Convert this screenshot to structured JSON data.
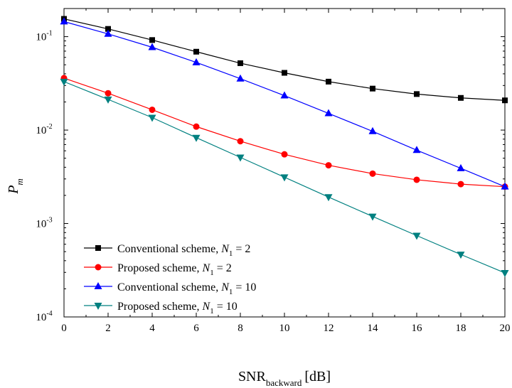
{
  "chart_data": {
    "type": "line",
    "xlabel_main": "SNR",
    "xlabel_sub": "backward",
    "xlabel_unit": "[dB]",
    "ylabel_main": "P",
    "ylabel_sub": "m",
    "xlim": [
      0,
      20
    ],
    "ylim": [
      0.0001,
      0.2
    ],
    "yscale": "log",
    "grid": false,
    "legend_position": "bottom-left",
    "x_ticks": [
      0,
      2,
      4,
      6,
      8,
      10,
      12,
      14,
      16,
      18,
      20
    ],
    "y_ticks": [
      {
        "value": 0.1,
        "base": "10",
        "exp": "-1"
      },
      {
        "value": 0.01,
        "base": "10",
        "exp": "-2"
      },
      {
        "value": 0.001,
        "base": "10",
        "exp": "-3"
      },
      {
        "value": 0.0001,
        "base": "10",
        "exp": "-4"
      }
    ],
    "x": [
      0,
      2,
      4,
      6,
      8,
      10,
      12,
      14,
      16,
      18,
      20
    ],
    "series": [
      {
        "name": "Conventional scheme, N1 = 2",
        "label_text": "Conventional scheme, ",
        "label_var": "N",
        "label_sub": "1",
        "label_val": " = 2",
        "color": "#000000",
        "marker": "square",
        "values": [
          0.155,
          0.121,
          0.092,
          0.069,
          0.052,
          0.041,
          0.033,
          0.0278,
          0.0243,
          0.0221,
          0.0208
        ]
      },
      {
        "name": "Proposed scheme, N1 = 2",
        "label_text": "Proposed scheme, ",
        "label_var": "N",
        "label_sub": "1",
        "label_val": " = 2",
        "color": "#ff0000",
        "marker": "circle",
        "values": [
          0.036,
          0.0248,
          0.0165,
          0.0109,
          0.0076,
          0.0055,
          0.0042,
          0.00342,
          0.00294,
          0.00264,
          0.00248
        ]
      },
      {
        "name": "Conventional scheme, N1 = 10",
        "label_text": "Conventional scheme, ",
        "label_var": "N",
        "label_sub": "1",
        "label_val": " = 10",
        "color": "#0000ff",
        "marker": "triangle-up",
        "values": [
          0.145,
          0.107,
          0.077,
          0.053,
          0.0355,
          0.0234,
          0.0151,
          0.0097,
          0.0061,
          0.0039,
          0.00248
        ]
      },
      {
        "name": "Proposed scheme, N1 = 10",
        "label_text": "Proposed scheme, ",
        "label_var": "N",
        "label_sub": "1",
        "label_val": " = 10",
        "color": "#008080",
        "marker": "triangle-down",
        "values": [
          0.033,
          0.0213,
          0.0136,
          0.0083,
          0.0051,
          0.00313,
          0.00192,
          0.00119,
          0.000743,
          0.000466,
          0.000296
        ]
      }
    ]
  }
}
